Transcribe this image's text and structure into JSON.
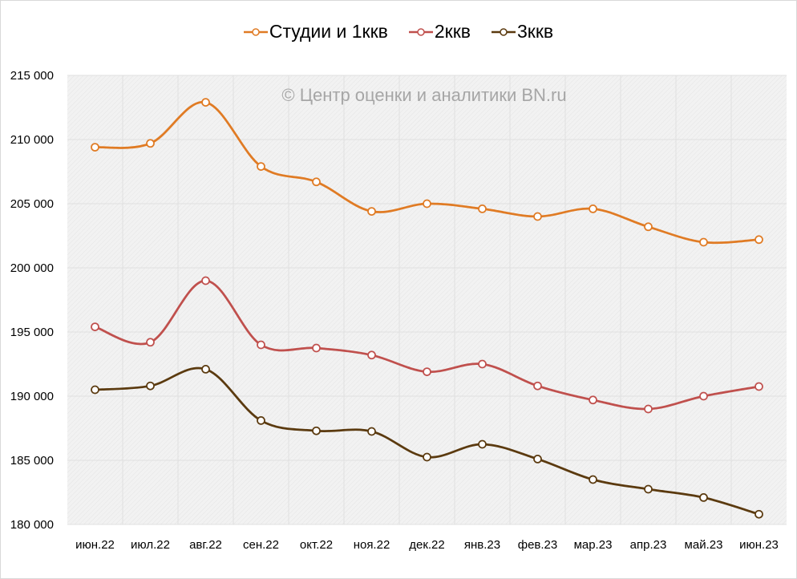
{
  "chart_data": {
    "type": "line",
    "title": "",
    "watermark": "© Центр оценки и аналитики BN.ru",
    "xlabel": "",
    "ylabel": "",
    "categories": [
      "июн.22",
      "июл.22",
      "авг.22",
      "сен.22",
      "окт.22",
      "ноя.22",
      "дек.22",
      "янв.23",
      "фев.23",
      "мар.23",
      "апр.23",
      "май.23",
      "июн.23"
    ],
    "ylim": [
      180000,
      215000
    ],
    "yticks": [
      180000,
      185000,
      190000,
      195000,
      200000,
      205000,
      210000,
      215000
    ],
    "ytick_labels": [
      "180 000",
      "185 000",
      "190 000",
      "195 000",
      "200 000",
      "205 000",
      "210 000",
      "215 000"
    ],
    "grid": true,
    "legend_position": "top-center",
    "smooth": true,
    "series": [
      {
        "name": "Студии и 1ккв",
        "color": "#e07b24",
        "values": [
          209400,
          209700,
          212900,
          207900,
          206700,
          204400,
          205000,
          204600,
          204000,
          204600,
          203200,
          202000,
          202200
        ]
      },
      {
        "name": "2ккв",
        "color": "#c0504d",
        "values": [
          195400,
          194200,
          199000,
          194000,
          193750,
          193200,
          191900,
          192500,
          190800,
          189700,
          189000,
          190000,
          190750
        ]
      },
      {
        "name": "3ккв",
        "color": "#5b3a0f",
        "values": [
          190500,
          190800,
          192100,
          188100,
          187300,
          187250,
          185250,
          186250,
          185100,
          183500,
          182750,
          182100,
          180800
        ]
      }
    ]
  }
}
